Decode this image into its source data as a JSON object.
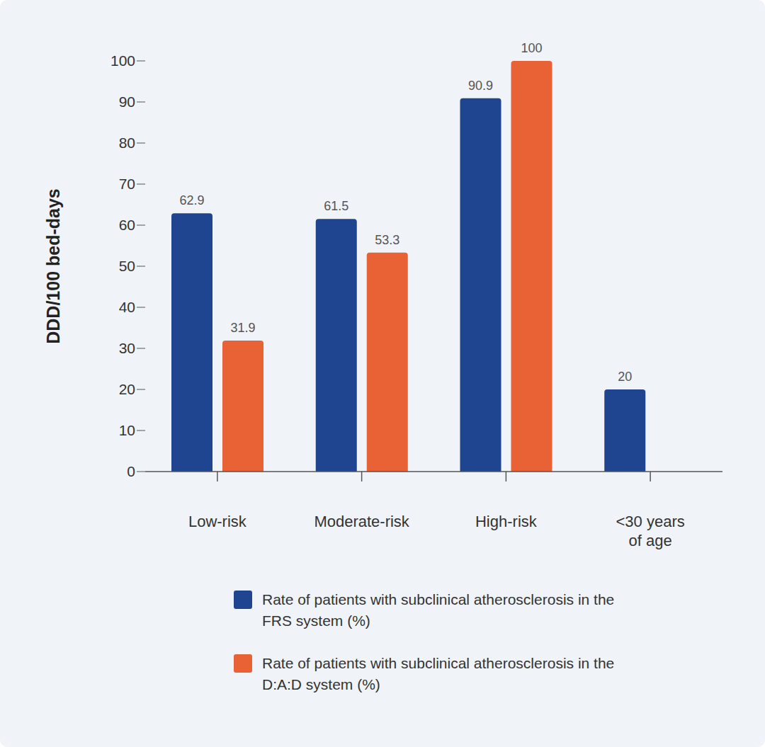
{
  "chart_data": {
    "type": "bar",
    "y_label": "DDD/100 bed-days",
    "categories": [
      "Low-risk",
      "Moderate-risk",
      "High-risk",
      "<30 years of age"
    ],
    "series": [
      {
        "name": "Rate of patients with subclinical atherosclerosis in the FRS system (%)",
        "color": "#1f4591",
        "values": [
          62.9,
          61.5,
          90.9,
          20
        ]
      },
      {
        "name": "Rate of patients with subclinical atherosclerosis in the D:A:D system (%)",
        "color": "#e86236",
        "values": [
          31.9,
          53.3,
          100,
          0
        ]
      }
    ],
    "ylim": [
      0,
      100
    ],
    "yticks": [
      0,
      10,
      20,
      30,
      40,
      50,
      60,
      70,
      80,
      90,
      100
    ],
    "grid": false,
    "data_labels": true,
    "legend": "bottom"
  }
}
